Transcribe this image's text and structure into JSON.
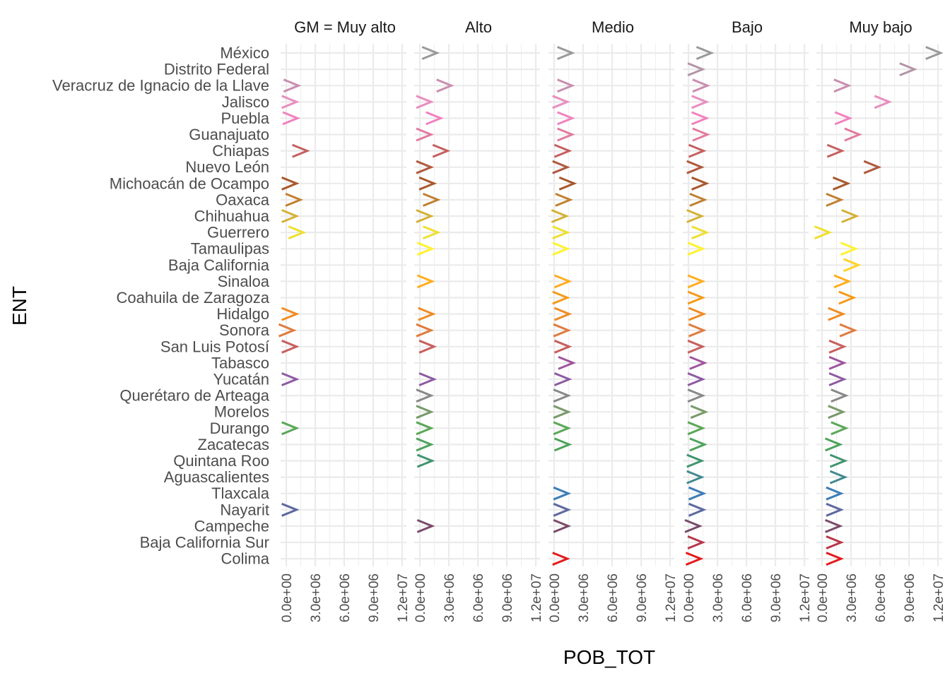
{
  "chart_data": {
    "type": "scatter",
    "marker": "chevron-right",
    "facet_var": "GM",
    "facets": [
      "GM = Muy alto",
      "Alto",
      "Medio",
      "Bajo",
      "Muy bajo"
    ],
    "xlabel": "POB_TOT",
    "ylabel": "ENT",
    "xlim": [
      0,
      12000000
    ],
    "x_ticks": [
      0,
      3000000,
      6000000,
      9000000,
      12000000
    ],
    "x_tick_labels": [
      "0.0e+00",
      "3.0e+06",
      "6.0e+06",
      "9.0e+06",
      "1.2e+07"
    ],
    "grid": true,
    "legend": "none",
    "categories": [
      "México",
      "Distrito Federal",
      "Veracruz de Ignacio de la Llave",
      "Jalisco",
      "Puebla",
      "Guanajuato",
      "Chiapas",
      "Nuevo León",
      "Michoacán de Ocampo",
      "Oaxaca",
      "Chihuahua",
      "Guerrero",
      "Tamaulipas",
      "Baja California",
      "Sinaloa",
      "Coahuila de Zaragoza",
      "Hidalgo",
      "Sonora",
      "San Luis Potosí",
      "Tabasco",
      "Yucatán",
      "Querétaro de Arteaga",
      "Morelos",
      "Durango",
      "Zacatecas",
      "Quintana Roo",
      "Aguascalientes",
      "Tlaxcala",
      "Nayarit",
      "Campeche",
      "Baja California Sur",
      "Colima"
    ],
    "colors": [
      "#999999",
      "#b394a6",
      "#c98fb0",
      "#e88fc0",
      "#f281be",
      "#e27ba0",
      "#c4605e",
      "#b05a40",
      "#a8592c",
      "#c08030",
      "#d4b136",
      "#eedf2e",
      "#fff233",
      "#ffd42a",
      "#ffad1f",
      "#f59b19",
      "#f08b22",
      "#e07c40",
      "#c86060",
      "#a0559e",
      "#8d5aa2",
      "#888888",
      "#7a9a6a",
      "#5ca858",
      "#4da35a",
      "#3f9470",
      "#42898f",
      "#3d7eb8",
      "#5d6aa0",
      "#7a4a6a",
      "#b8364a",
      "#e41a1c"
    ],
    "series": [
      {
        "name": "GM = Muy alto",
        "points": [
          [
            "Veracruz de Ignacio de la Llave",
            500000
          ],
          [
            "Jalisco",
            300000
          ],
          [
            "Puebla",
            400000
          ],
          [
            "Chiapas",
            1400000
          ],
          [
            "Michoacán de Ocampo",
            300000
          ],
          [
            "Oaxaca",
            700000
          ],
          [
            "Chihuahua",
            300000
          ],
          [
            "Guerrero",
            1000000
          ],
          [
            "Hidalgo",
            300000
          ],
          [
            "Sonora",
            0
          ],
          [
            "San Luis Potosí",
            300000
          ],
          [
            "Yucatán",
            300000
          ],
          [
            "Durango",
            300000
          ],
          [
            "Nayarit",
            300000
          ]
        ]
      },
      {
        "name": "Alto",
        "points": [
          [
            "México",
            1000000
          ],
          [
            "Veracruz de Ignacio de la Llave",
            2500000
          ],
          [
            "Jalisco",
            400000
          ],
          [
            "Puebla",
            1400000
          ],
          [
            "Guanajuato",
            400000
          ],
          [
            "Chiapas",
            2100000
          ],
          [
            "Nuevo León",
            400000
          ],
          [
            "Michoacán de Ocampo",
            700000
          ],
          [
            "Oaxaca",
            1100000
          ],
          [
            "Chihuahua",
            400000
          ],
          [
            "Guerrero",
            1100000
          ],
          [
            "Tamaulipas",
            500000
          ],
          [
            "Sinaloa",
            500000
          ],
          [
            "Hidalgo",
            600000
          ],
          [
            "Sonora",
            400000
          ],
          [
            "San Luis Potosí",
            700000
          ],
          [
            "Yucatán",
            700000
          ],
          [
            "Querétaro de Arteaga",
            400000
          ],
          [
            "Morelos",
            400000
          ],
          [
            "Durango",
            400000
          ],
          [
            "Zacatecas",
            400000
          ],
          [
            "Quintana Roo",
            500000
          ],
          [
            "Campeche",
            500000
          ]
        ]
      },
      {
        "name": "Medio",
        "points": [
          [
            "México",
            1100000
          ],
          [
            "Veracruz de Ignacio de la Llave",
            1100000
          ],
          [
            "Jalisco",
            600000
          ],
          [
            "Puebla",
            1100000
          ],
          [
            "Guanajuato",
            1100000
          ],
          [
            "Chiapas",
            800000
          ],
          [
            "Nuevo León",
            600000
          ],
          [
            "Michoacán de Ocampo",
            1300000
          ],
          [
            "Oaxaca",
            900000
          ],
          [
            "Chihuahua",
            500000
          ],
          [
            "Guerrero",
            600000
          ],
          [
            "Tamaulipas",
            600000
          ],
          [
            "Sinaloa",
            800000
          ],
          [
            "Coahuila de Zaragoza",
            600000
          ],
          [
            "Hidalgo",
            800000
          ],
          [
            "Sonora",
            700000
          ],
          [
            "San Luis Potosí",
            800000
          ],
          [
            "Tabasco",
            1200000
          ],
          [
            "Yucatán",
            800000
          ],
          [
            "Querétaro de Arteaga",
            700000
          ],
          [
            "Morelos",
            700000
          ],
          [
            "Durango",
            700000
          ],
          [
            "Zacatecas",
            800000
          ],
          [
            "Tlaxcala",
            700000
          ],
          [
            "Nayarit",
            700000
          ],
          [
            "Campeche",
            700000
          ],
          [
            "Colima",
            600000
          ]
        ]
      },
      {
        "name": "Bajo",
        "points": [
          [
            "México",
            1600000
          ],
          [
            "Distrito Federal",
            700000
          ],
          [
            "Veracruz de Ignacio de la Llave",
            1200000
          ],
          [
            "Jalisco",
            1100000
          ],
          [
            "Puebla",
            1100000
          ],
          [
            "Guanajuato",
            1200000
          ],
          [
            "Chiapas",
            800000
          ],
          [
            "Nuevo León",
            600000
          ],
          [
            "Michoacán de Ocampo",
            1100000
          ],
          [
            "Oaxaca",
            900000
          ],
          [
            "Chihuahua",
            600000
          ],
          [
            "Guerrero",
            1100000
          ],
          [
            "Tamaulipas",
            700000
          ],
          [
            "Sinaloa",
            700000
          ],
          [
            "Coahuila de Zaragoza",
            700000
          ],
          [
            "Hidalgo",
            800000
          ],
          [
            "Sonora",
            800000
          ],
          [
            "San Luis Potosí",
            700000
          ],
          [
            "Tabasco",
            900000
          ],
          [
            "Yucatán",
            700000
          ],
          [
            "Querétaro de Arteaga",
            700000
          ],
          [
            "Morelos",
            1000000
          ],
          [
            "Durango",
            700000
          ],
          [
            "Zacatecas",
            900000
          ],
          [
            "Quintana Roo",
            600000
          ],
          [
            "Aguascalientes",
            600000
          ],
          [
            "Tlaxcala",
            800000
          ],
          [
            "Nayarit",
            800000
          ],
          [
            "Campeche",
            400000
          ],
          [
            "Baja California Sur",
            700000
          ],
          [
            "Colima",
            500000
          ]
        ]
      },
      {
        "name": "Muy bajo",
        "points": [
          [
            "México",
            11500000
          ],
          [
            "Distrito Federal",
            8800000
          ],
          [
            "Veracruz de Ignacio de la Llave",
            2000000
          ],
          [
            "Jalisco",
            6200000
          ],
          [
            "Puebla",
            2100000
          ],
          [
            "Guanajuato",
            3100000
          ],
          [
            "Chiapas",
            1300000
          ],
          [
            "Nuevo León",
            5100000
          ],
          [
            "Michoacán de Ocampo",
            1900000
          ],
          [
            "Oaxaca",
            1200000
          ],
          [
            "Chihuahua",
            2800000
          ],
          [
            "Guerrero",
            0
          ],
          [
            "Tamaulipas",
            2700000
          ],
          [
            "Baja California",
            3000000
          ],
          [
            "Sinaloa",
            2000000
          ],
          [
            "Coahuila de Zaragoza",
            2500000
          ],
          [
            "Hidalgo",
            1400000
          ],
          [
            "Sonora",
            2600000
          ],
          [
            "San Luis Potosí",
            1500000
          ],
          [
            "Tabasco",
            1500000
          ],
          [
            "Yucatán",
            1500000
          ],
          [
            "Querétaro de Arteaga",
            1700000
          ],
          [
            "Morelos",
            1400000
          ],
          [
            "Durango",
            1700000
          ],
          [
            "Zacatecas",
            1100000
          ],
          [
            "Quintana Roo",
            1600000
          ],
          [
            "Aguascalientes",
            1600000
          ],
          [
            "Tlaxcala",
            1200000
          ],
          [
            "Nayarit",
            1200000
          ],
          [
            "Campeche",
            1100000
          ],
          [
            "Baja California Sur",
            1200000
          ],
          [
            "Colima",
            1200000
          ]
        ]
      }
    ]
  }
}
